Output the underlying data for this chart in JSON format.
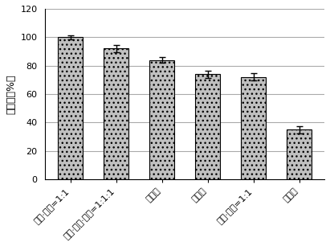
{
  "categories": [
    "螂炭·螂石=1:1",
    "螂炭·螂石·园土=1:1:1",
    "绍螂石",
    "绍螂炭",
    "螂炭·园土=1:1",
    "绍园土"
  ],
  "values": [
    100.0,
    92.0,
    84.0,
    74.0,
    72.0,
    35.0
  ],
  "errors": [
    1.5,
    2.5,
    2.0,
    2.5,
    2.5,
    2.5
  ],
  "bar_color": "#c0c0c0",
  "bar_edgecolor": "#000000",
  "error_color": "#000000",
  "ylabel": "成活率（%）",
  "ylim": [
    0,
    120
  ],
  "yticks": [
    0,
    20,
    40,
    60,
    80,
    100,
    120
  ],
  "background_color": "#ffffff",
  "ylabel_fontsize": 9,
  "tick_fontsize": 8,
  "bar_width": 0.55,
  "hatch": "..."
}
